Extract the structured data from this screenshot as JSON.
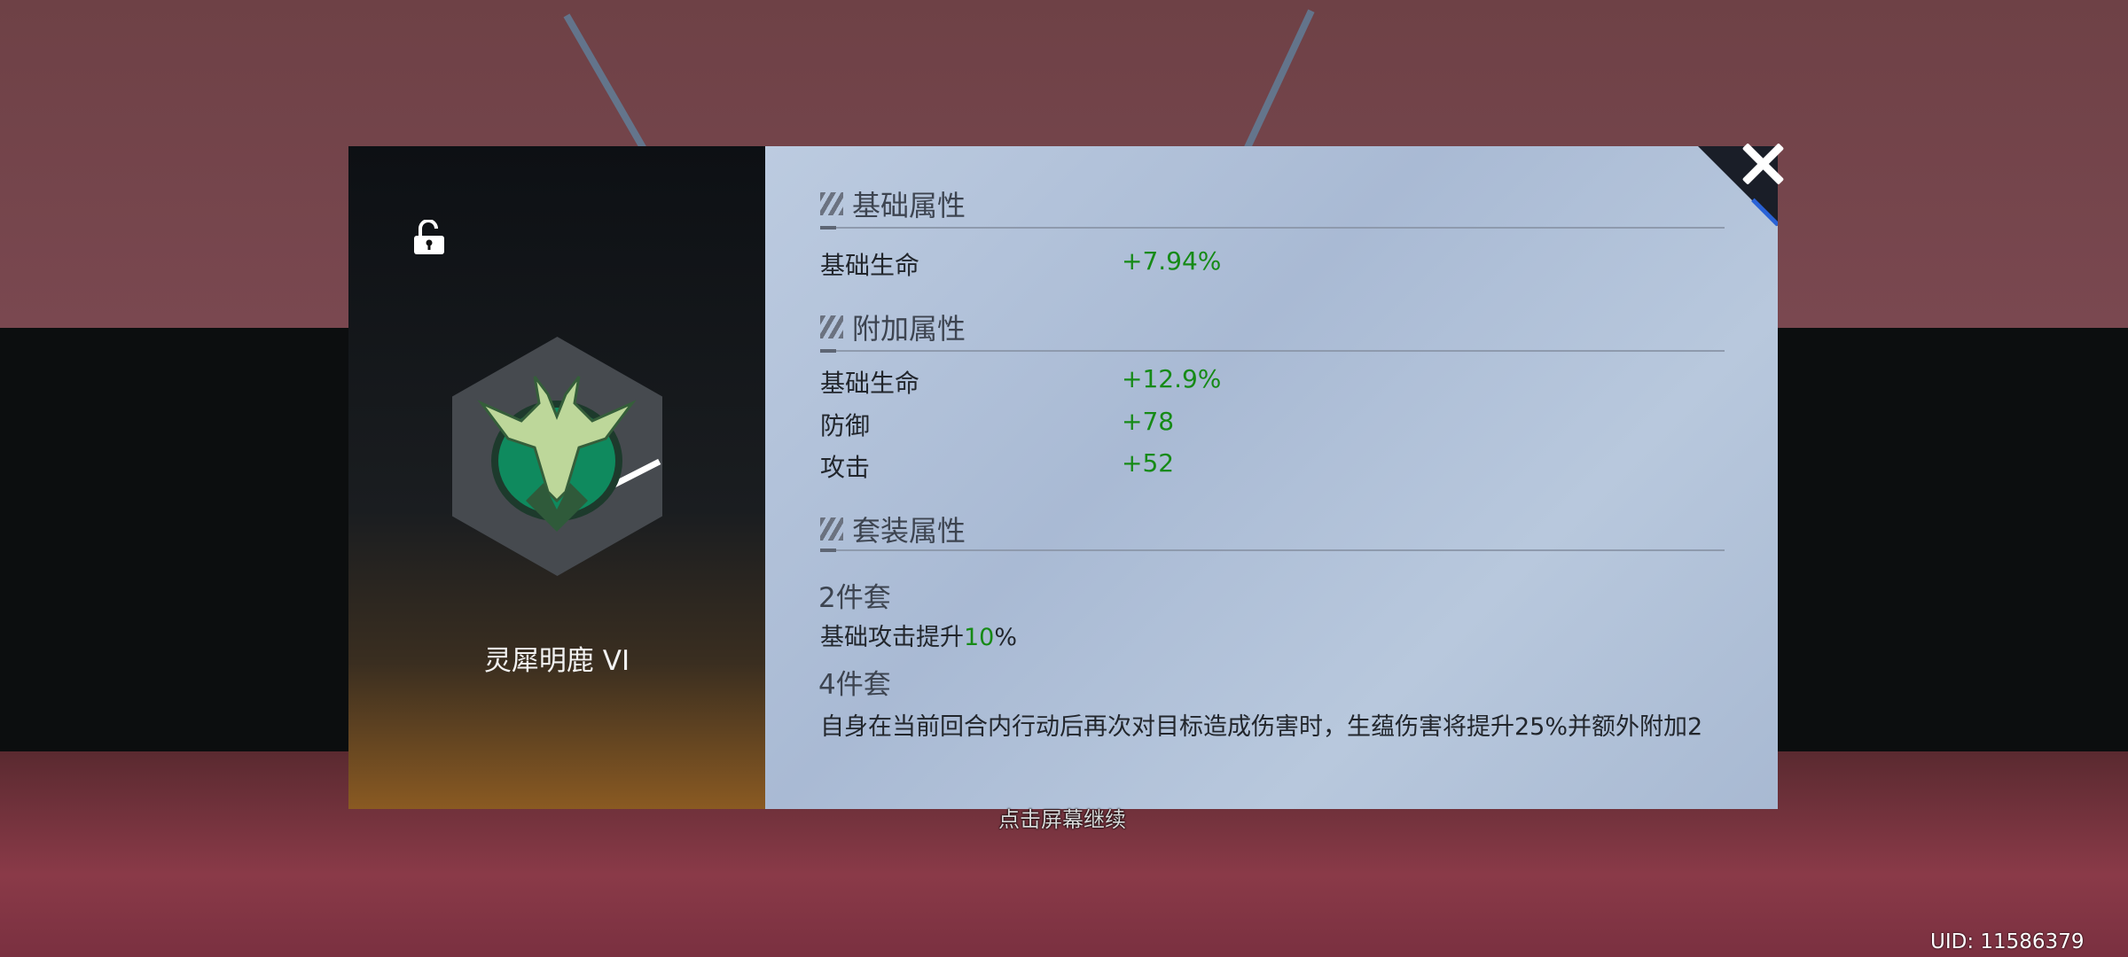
{
  "item": {
    "name": "灵犀明鹿 VI",
    "locked": false
  },
  "sections": {
    "base": {
      "title": "基础属性",
      "stats": [
        {
          "label": "基础生命",
          "value": "+7.94%"
        }
      ]
    },
    "extra": {
      "title": "附加属性",
      "stats": [
        {
          "label": "基础生命",
          "value": "+12.9%"
        },
        {
          "label": "防御",
          "value": "+78"
        },
        {
          "label": "攻击",
          "value": "+52"
        }
      ]
    },
    "set": {
      "title": "套装属性",
      "two_piece": {
        "title": "2件套",
        "text_before": "基础攻击提升",
        "highlight": "10",
        "text_after": "%"
      },
      "four_piece": {
        "title": "4件套",
        "text": "自身在当前回合内行动后再次对目标造成伤害时，生蕴伤害将提升25%并额外附加2"
      }
    }
  },
  "hint": "点击屏幕继续",
  "uid": "UID: 11586379",
  "colors": {
    "positive": "#168a16",
    "panel": "#b8c8dd"
  }
}
